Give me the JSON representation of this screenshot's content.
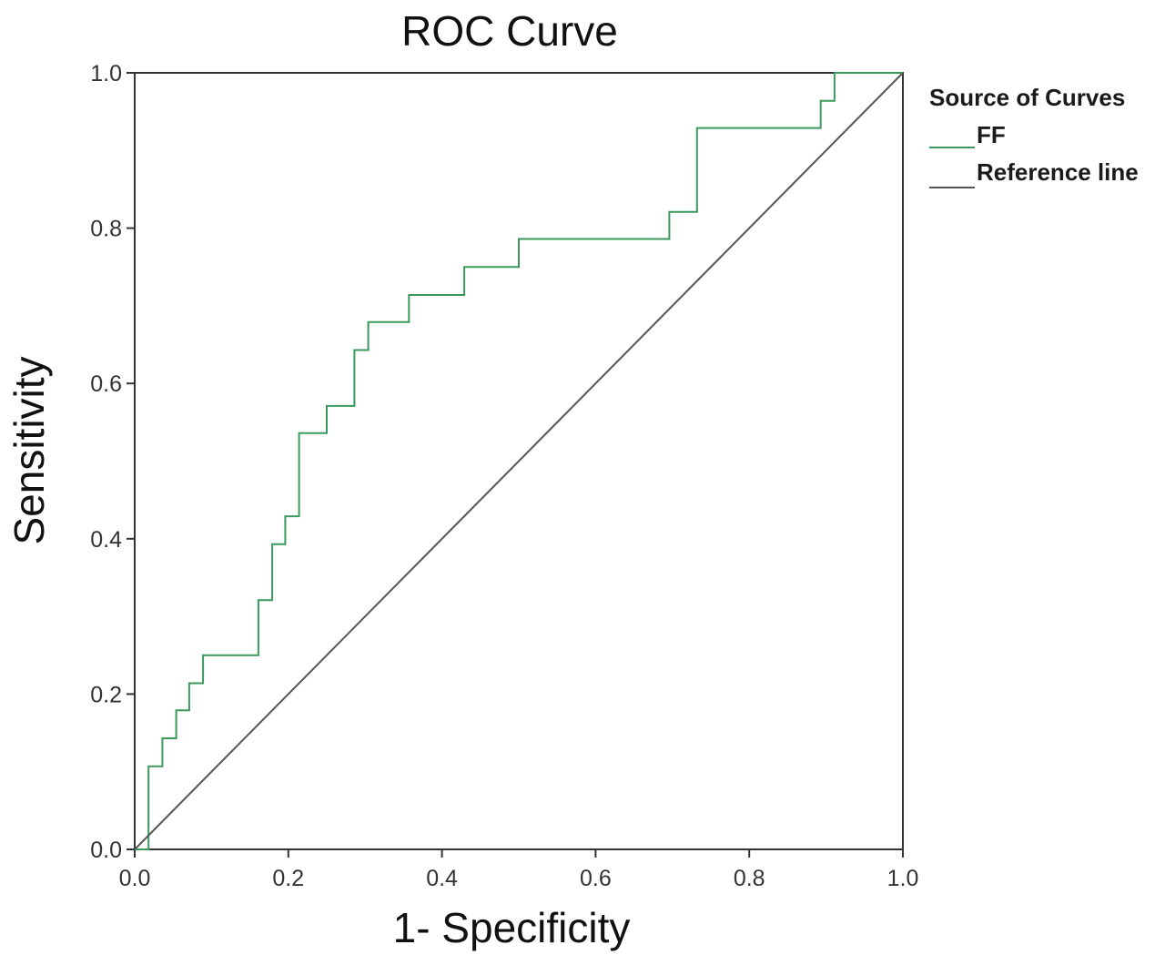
{
  "chart_data": {
    "type": "line",
    "title": "ROC Curve",
    "xlabel": "1- Specificity",
    "ylabel": "Sensitivity",
    "xlim": [
      0,
      1
    ],
    "ylim": [
      0,
      1
    ],
    "x_ticks": [
      "0.0",
      "0.2",
      "0.4",
      "0.6",
      "0.8",
      "1.0"
    ],
    "y_ticks": [
      "0.0",
      "0.2",
      "0.4",
      "0.6",
      "0.8",
      "1.0"
    ],
    "grid": false,
    "legend": {
      "title": "Source of Curves",
      "placement": "right",
      "entries": [
        "FF",
        "Reference line"
      ]
    },
    "series": [
      {
        "name": "FF",
        "color": "#3a9a5c",
        "step": true,
        "points": [
          [
            0.0,
            0.0
          ],
          [
            0.018,
            0.0
          ],
          [
            0.018,
            0.107
          ],
          [
            0.036,
            0.107
          ],
          [
            0.036,
            0.143
          ],
          [
            0.054,
            0.143
          ],
          [
            0.054,
            0.179
          ],
          [
            0.071,
            0.179
          ],
          [
            0.071,
            0.214
          ],
          [
            0.089,
            0.214
          ],
          [
            0.089,
            0.25
          ],
          [
            0.161,
            0.25
          ],
          [
            0.161,
            0.321
          ],
          [
            0.179,
            0.321
          ],
          [
            0.179,
            0.393
          ],
          [
            0.196,
            0.393
          ],
          [
            0.196,
            0.429
          ],
          [
            0.214,
            0.429
          ],
          [
            0.214,
            0.536
          ],
          [
            0.25,
            0.536
          ],
          [
            0.25,
            0.571
          ],
          [
            0.286,
            0.571
          ],
          [
            0.286,
            0.643
          ],
          [
            0.304,
            0.643
          ],
          [
            0.304,
            0.679
          ],
          [
            0.357,
            0.679
          ],
          [
            0.357,
            0.714
          ],
          [
            0.429,
            0.714
          ],
          [
            0.429,
            0.75
          ],
          [
            0.5,
            0.75
          ],
          [
            0.5,
            0.786
          ],
          [
            0.696,
            0.786
          ],
          [
            0.696,
            0.821
          ],
          [
            0.732,
            0.821
          ],
          [
            0.732,
            0.929
          ],
          [
            0.893,
            0.929
          ],
          [
            0.893,
            0.964
          ],
          [
            0.911,
            0.964
          ],
          [
            0.911,
            1.0
          ],
          [
            1.0,
            1.0
          ]
        ]
      },
      {
        "name": "Reference line",
        "color": "#555555",
        "step": false,
        "points": [
          [
            0.0,
            0.0
          ],
          [
            1.0,
            1.0
          ]
        ]
      }
    ]
  }
}
